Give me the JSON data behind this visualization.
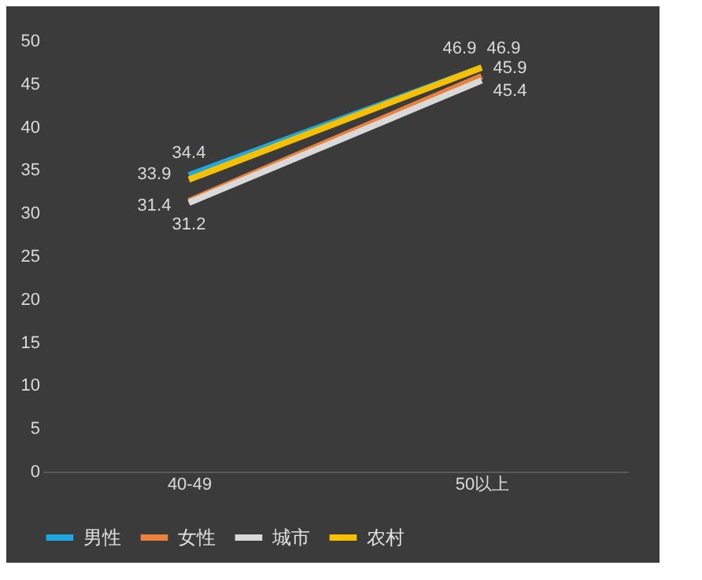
{
  "chart_data": {
    "type": "line",
    "categories": [
      "40-49",
      "50以上"
    ],
    "series": [
      {
        "name": "男性",
        "color": "#1ea7e0",
        "values": [
          34.4,
          46.9
        ]
      },
      {
        "name": "女性",
        "color": "#e8823c",
        "values": [
          31.4,
          45.9
        ]
      },
      {
        "name": "城市",
        "color": "#d9d9d9",
        "values": [
          31.2,
          45.4
        ]
      },
      {
        "name": "农村",
        "color": "#f5c000",
        "values": [
          33.9,
          46.9
        ]
      }
    ],
    "ylim": [
      0,
      50
    ],
    "yticks": [
      0,
      5,
      10,
      15,
      20,
      25,
      30,
      35,
      40,
      45,
      50
    ],
    "grid": false,
    "legend": "bottom",
    "data_labels": true,
    "marker": "none",
    "line_style": "solid"
  }
}
